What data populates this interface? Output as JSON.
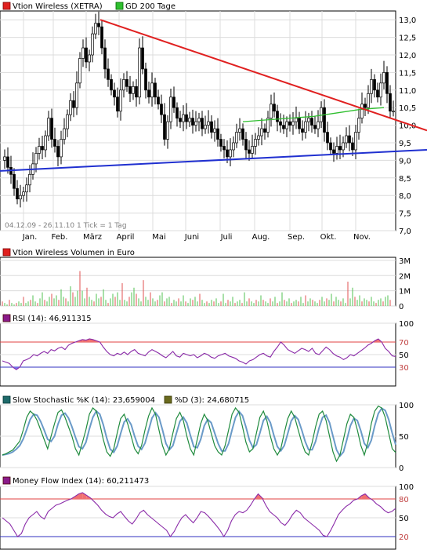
{
  "chart_data": [
    {
      "type": "candlestick",
      "legend": [
        {
          "label": "Vtion Wireless (XETRA)",
          "color": "#e0201f"
        },
        {
          "label": "GD 200 Tage",
          "color": "#2fbf2f"
        }
      ],
      "range_label": "04.12.09 - 26.11.10   1 Tick = 1 Tag",
      "x_months": [
        "Jan.",
        "Feb.",
        "März",
        "April",
        "Mai",
        "Juni",
        "Juli",
        "Aug.",
        "Sep.",
        "Okt.",
        "Nov."
      ],
      "ylim": [
        7.0,
        13.25
      ],
      "yticks": [
        "13,0",
        "12,5",
        "12,0",
        "11,5",
        "11,0",
        "10,5",
        "10,0",
        "9,5",
        "9,0",
        "8,5",
        "8,0",
        "7,5",
        "7,0"
      ],
      "close_path": [
        [
          0,
          9.0
        ],
        [
          6,
          9.1
        ],
        [
          10,
          8.8
        ],
        [
          14,
          8.6
        ],
        [
          18,
          8.2
        ],
        [
          22,
          7.9
        ],
        [
          26,
          8.0
        ],
        [
          30,
          8.1
        ],
        [
          34,
          8.3
        ],
        [
          38,
          8.6
        ],
        [
          42,
          8.9
        ],
        [
          46,
          9.2
        ],
        [
          50,
          9.4
        ],
        [
          54,
          9.3
        ],
        [
          58,
          9.7
        ],
        [
          62,
          10.2
        ],
        [
          66,
          9.6
        ],
        [
          70,
          9.4
        ],
        [
          74,
          9.1
        ],
        [
          78,
          9.6
        ],
        [
          82,
          9.9
        ],
        [
          86,
          10.3
        ],
        [
          90,
          10.7
        ],
        [
          94,
          10.5
        ],
        [
          98,
          11.2
        ],
        [
          102,
          11.9
        ],
        [
          106,
          12.2
        ],
        [
          110,
          11.8
        ],
        [
          114,
          12.0
        ],
        [
          118,
          12.6
        ],
        [
          122,
          12.9
        ],
        [
          126,
          12.8
        ],
        [
          130,
          12.2
        ],
        [
          134,
          11.6
        ],
        [
          138,
          11.3
        ],
        [
          142,
          11.0
        ],
        [
          146,
          10.8
        ],
        [
          150,
          10.4
        ],
        [
          154,
          11.0
        ],
        [
          158,
          11.3
        ],
        [
          162,
          11.1
        ],
        [
          166,
          10.9
        ],
        [
          170,
          11.1
        ],
        [
          174,
          10.8
        ],
        [
          178,
          12.2
        ],
        [
          182,
          11.6
        ],
        [
          186,
          11.0
        ],
        [
          190,
          10.8
        ],
        [
          194,
          11.2
        ],
        [
          198,
          10.8
        ],
        [
          202,
          10.6
        ],
        [
          206,
          10.3
        ],
        [
          210,
          9.6
        ],
        [
          214,
          10.1
        ],
        [
          218,
          10.8
        ],
        [
          222,
          10.5
        ],
        [
          226,
          10.2
        ],
        [
          230,
          10.1
        ],
        [
          234,
          10.3
        ],
        [
          238,
          10.1
        ],
        [
          242,
          10.2
        ],
        [
          246,
          10.0
        ],
        [
          250,
          10.1
        ],
        [
          254,
          10.2
        ],
        [
          258,
          9.9
        ],
        [
          262,
          10.0
        ],
        [
          266,
          10.1
        ],
        [
          270,
          9.8
        ],
        [
          274,
          9.9
        ],
        [
          278,
          9.6
        ],
        [
          282,
          9.4
        ],
        [
          286,
          9.3
        ],
        [
          290,
          9.1
        ],
        [
          294,
          9.3
        ],
        [
          298,
          9.5
        ],
        [
          302,
          9.8
        ],
        [
          306,
          9.9
        ],
        [
          310,
          9.6
        ],
        [
          314,
          9.3
        ],
        [
          318,
          9.2
        ],
        [
          322,
          9.4
        ],
        [
          326,
          9.6
        ],
        [
          330,
          9.7
        ],
        [
          334,
          9.9
        ],
        [
          338,
          9.8
        ],
        [
          342,
          10.2
        ],
        [
          346,
          10.6
        ],
        [
          350,
          10.4
        ],
        [
          354,
          10.1
        ],
        [
          358,
          10.0
        ],
        [
          362,
          9.9
        ],
        [
          366,
          10.1
        ],
        [
          370,
          10.0
        ],
        [
          374,
          10.1
        ],
        [
          378,
          10.2
        ],
        [
          382,
          9.9
        ],
        [
          386,
          9.8
        ],
        [
          390,
          10.1
        ],
        [
          394,
          10.2
        ],
        [
          398,
          10.0
        ],
        [
          402,
          9.9
        ],
        [
          406,
          10.1
        ],
        [
          410,
          10.5
        ],
        [
          414,
          9.8
        ],
        [
          418,
          9.5
        ],
        [
          422,
          9.3
        ],
        [
          426,
          9.2
        ],
        [
          430,
          9.4
        ],
        [
          434,
          9.3
        ],
        [
          438,
          9.5
        ],
        [
          442,
          9.7
        ],
        [
          446,
          9.5
        ],
        [
          450,
          9.3
        ],
        [
          454,
          9.8
        ],
        [
          458,
          10.2
        ],
        [
          462,
          10.6
        ],
        [
          466,
          10.5
        ],
        [
          470,
          10.9
        ],
        [
          474,
          11.3
        ],
        [
          478,
          11.0
        ],
        [
          482,
          10.8
        ],
        [
          486,
          11.2
        ],
        [
          490,
          11.5
        ],
        [
          494,
          10.9
        ],
        [
          498,
          10.4
        ],
        [
          502,
          10.4
        ]
      ],
      "trend_lines": [
        {
          "name": "resistance",
          "color": "#e02020",
          "from": [
            128,
            13.0
          ],
          "to": [
            545,
            9.85
          ]
        },
        {
          "name": "support",
          "color": "#2030d0",
          "from": [
            0,
            8.7
          ],
          "to": [
            545,
            9.3
          ]
        }
      ],
      "ma200_path": [
        [
          310,
          10.1
        ],
        [
          340,
          10.15
        ],
        [
          370,
          10.2
        ],
        [
          400,
          10.25
        ],
        [
          430,
          10.35
        ],
        [
          460,
          10.45
        ],
        [
          490,
          10.5
        ]
      ]
    },
    {
      "type": "bar",
      "title": "Vtion Wireless Volumen in Euro",
      "yticks": [
        "3M",
        "2M",
        "1M",
        "0"
      ],
      "ylim": [
        0,
        3.2
      ],
      "bar_spacing_px": 3,
      "values": [
        0.3,
        0.2,
        0.1,
        0.4,
        0.2,
        0.1,
        0.2,
        0.3,
        0.2,
        0.6,
        0.2,
        0.3,
        0.4,
        0.7,
        0.3,
        0.2,
        0.5,
        0.9,
        0.4,
        0.3,
        0.6,
        0.8,
        0.5,
        0.7,
        0.4,
        1.1,
        0.6,
        0.5,
        0.3,
        1.3,
        0.9,
        0.6,
        1.0,
        2.3,
        1.0,
        0.5,
        1.2,
        0.6,
        0.4,
        0.3,
        0.8,
        0.5,
        0.6,
        1.1,
        0.4,
        0.2,
        0.5,
        0.8,
        0.6,
        0.9,
        0.4,
        1.5,
        0.4,
        0.3,
        0.6,
        0.9,
        1.2,
        0.8,
        0.5,
        0.3,
        1.7,
        0.6,
        0.4,
        0.9,
        0.5,
        0.3,
        0.4,
        0.7,
        0.9,
        0.3,
        0.5,
        0.6,
        0.2,
        0.4,
        0.3,
        0.5,
        0.3,
        0.7,
        0.3,
        0.2,
        0.5,
        0.4,
        0.6,
        0.3,
        0.8,
        0.4,
        0.2,
        0.3,
        0.2,
        0.4,
        0.3,
        0.5,
        0.2,
        0.3,
        0.8,
        0.2,
        0.4,
        0.3,
        0.6,
        0.2,
        0.3,
        0.4,
        0.2,
        0.9,
        0.3,
        0.5,
        0.3,
        0.2,
        0.4,
        0.3,
        0.7,
        0.4,
        0.3,
        0.2,
        0.5,
        0.3,
        0.6,
        0.2,
        0.3,
        0.9,
        0.4,
        0.3,
        0.5,
        0.2,
        0.3,
        0.4,
        0.3,
        0.6,
        0.2,
        0.7,
        0.3,
        0.5,
        0.4,
        0.3,
        0.2,
        0.4,
        0.6,
        0.3,
        0.5,
        0.4,
        0.8,
        0.3,
        0.6,
        0.4,
        0.3,
        0.5,
        0.2,
        1.6,
        0.5,
        1.2,
        0.6,
        0.4,
        0.7,
        0.3,
        0.5,
        0.4,
        0.3,
        0.6,
        0.3,
        0.2,
        0.4,
        0.5,
        0.3,
        0.6,
        0.7,
        0.4
      ]
    },
    {
      "type": "line",
      "title": "RSI (14): 46,911315",
      "yticks": [
        "100",
        "70",
        "50",
        "30"
      ],
      "ylim": [
        0,
        100
      ],
      "ref_lines": [
        70,
        30
      ],
      "values": [
        40,
        38,
        36,
        30,
        26,
        30,
        40,
        42,
        45,
        50,
        48,
        52,
        55,
        52,
        58,
        56,
        60,
        62,
        58,
        65,
        68,
        70,
        72,
        74,
        73,
        75,
        74,
        72,
        70,
        62,
        55,
        50,
        48,
        52,
        50,
        54,
        50,
        55,
        58,
        52,
        50,
        48,
        54,
        58,
        55,
        52,
        48,
        45,
        50,
        55,
        48,
        46,
        52,
        50,
        48,
        50,
        45,
        48,
        52,
        50,
        46,
        44,
        48,
        50,
        52,
        48,
        46,
        44,
        40,
        38,
        35,
        40,
        42,
        46,
        50,
        52,
        48,
        46,
        55,
        62,
        70,
        65,
        58,
        55,
        52,
        56,
        60,
        58,
        55,
        60,
        52,
        50,
        56,
        62,
        58,
        52,
        48,
        46,
        42,
        45,
        50,
        48,
        52,
        56,
        60,
        65,
        68,
        72,
        75,
        70,
        60,
        55,
        48,
        47
      ]
    },
    {
      "type": "line",
      "title": "Slow Stochastic %K (14): 23,659004",
      "title2": "%D (3): 24,680715",
      "yticks": [
        "100",
        "50",
        "0"
      ],
      "ylim": [
        0,
        100
      ],
      "series": [
        {
          "name": "Slow Stochastic %K (14): 23,659004",
          "color": "#1e8a3c"
        },
        {
          "name": "%D (3): 24,680715",
          "color": "#6a9ac8"
        }
      ],
      "values": [
        20,
        22,
        25,
        28,
        35,
        42,
        60,
        80,
        90,
        85,
        75,
        60,
        45,
        30,
        50,
        70,
        88,
        92,
        80,
        65,
        50,
        30,
        20,
        40,
        60,
        85,
        95,
        90,
        70,
        45,
        25,
        18,
        30,
        55,
        78,
        85,
        70,
        50,
        30,
        22,
        35,
        60,
        82,
        95,
        85,
        60,
        35,
        20,
        30,
        55,
        78,
        88,
        75,
        50,
        30,
        20,
        45,
        70,
        85,
        75,
        55,
        35,
        25,
        20,
        35,
        60,
        85,
        95,
        88,
        65,
        40,
        25,
        30,
        55,
        80,
        90,
        75,
        50,
        30,
        20,
        30,
        55,
        78,
        90,
        80,
        60,
        40,
        25,
        20,
        40,
        65,
        85,
        90,
        75,
        50,
        25,
        10,
        20,
        45,
        70,
        85,
        80,
        60,
        35,
        20,
        40,
        70,
        90,
        98,
        95,
        80,
        55,
        30,
        24
      ]
    },
    {
      "type": "line",
      "title": "Money Flow Index (14): 60,211473",
      "yticks": [
        "100",
        "80",
        "50",
        "20"
      ],
      "ylim": [
        0,
        100
      ],
      "ref_lines": [
        80,
        20
      ],
      "values": [
        50,
        45,
        40,
        30,
        20,
        25,
        40,
        50,
        55,
        60,
        52,
        48,
        60,
        65,
        70,
        72,
        75,
        78,
        80,
        84,
        88,
        90,
        86,
        82,
        76,
        70,
        62,
        56,
        52,
        50,
        56,
        60,
        52,
        45,
        40,
        48,
        58,
        62,
        55,
        50,
        45,
        40,
        35,
        30,
        20,
        28,
        40,
        50,
        55,
        48,
        42,
        50,
        60,
        58,
        52,
        45,
        38,
        30,
        20,
        30,
        45,
        55,
        60,
        58,
        62,
        70,
        80,
        88,
        82,
        70,
        60,
        55,
        50,
        42,
        38,
        45,
        55,
        62,
        58,
        50,
        45,
        40,
        35,
        30,
        22,
        20,
        30,
        42,
        55,
        62,
        68,
        72,
        78,
        80,
        85,
        88,
        82,
        78,
        72,
        68,
        62,
        58,
        60,
        65
      ]
    }
  ]
}
